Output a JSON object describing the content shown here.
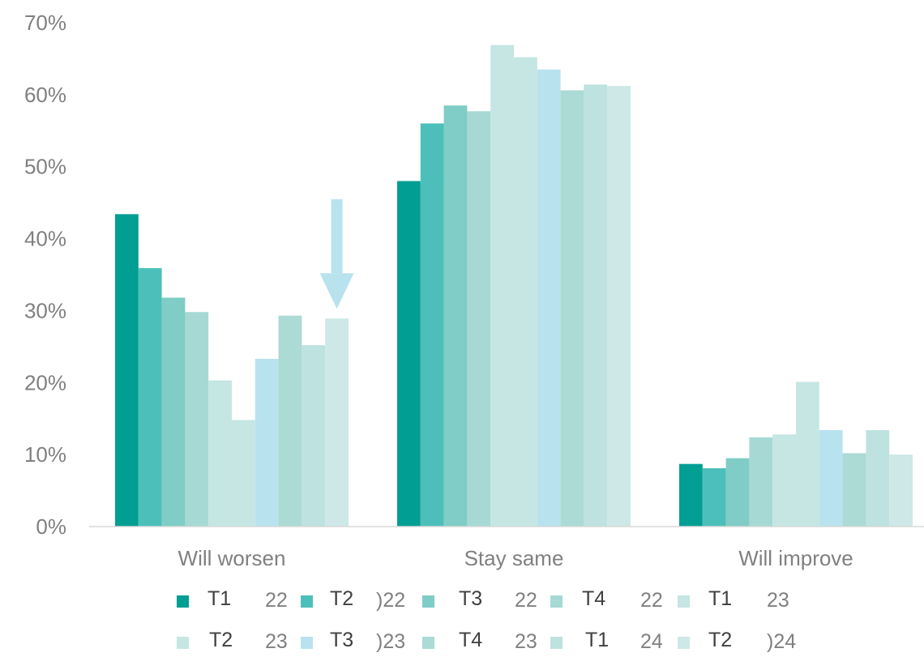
{
  "chart_data": {
    "type": "bar",
    "categories": [
      "Will worsen",
      "Stay same",
      "Will improve"
    ],
    "ylim": [
      0,
      70
    ],
    "yticks": [
      "0%",
      "10%",
      "20%",
      "30%",
      "40%",
      "50%",
      "60%",
      "70%"
    ],
    "grid": false,
    "legend_position": "bottom",
    "series": [
      {
        "name": "T1 22",
        "color": "#009e93",
        "values": [
          43.4,
          48.0,
          8.7
        ]
      },
      {
        "name": "T2 22",
        "color": "#4dbfba",
        "values": [
          35.9,
          56.0,
          8.1
        ]
      },
      {
        "name": "T3 22",
        "color": "#80ccc6",
        "values": [
          31.8,
          58.5,
          9.5
        ]
      },
      {
        "name": "T4 22",
        "color": "#a6d9d4",
        "values": [
          29.8,
          57.7,
          12.4
        ]
      },
      {
        "name": "T1 23",
        "color": "#c5e6e3",
        "values": [
          20.3,
          66.9,
          12.8
        ]
      },
      {
        "name": "T2 23",
        "color": "#c5e6e3",
        "values": [
          14.8,
          65.2,
          20.1
        ]
      },
      {
        "name": "T3 23",
        "color": "#b8e2ee",
        "values": [
          23.3,
          63.5,
          13.4
        ]
      },
      {
        "name": "T4 23",
        "color": "#acdad5",
        "values": [
          29.3,
          60.6,
          10.2
        ]
      },
      {
        "name": "T1 24",
        "color": "#bde2df",
        "values": [
          25.2,
          61.4,
          13.4
        ]
      },
      {
        "name": "T2 24",
        "color": "#cde8e6",
        "values": [
          28.9,
          61.2,
          10.0
        ]
      }
    ],
    "annotation": {
      "type": "arrow",
      "direction": "down",
      "color": "#b8e2ee",
      "series": "T2 24",
      "category": "Will worsen"
    }
  },
  "legend": {
    "row1": [
      {
        "label": "T1",
        "year": "22"
      },
      {
        "label": "T2",
        "year": ")22"
      },
      {
        "label": "T3",
        "year": "22"
      },
      {
        "label": "T4",
        "year": "22"
      },
      {
        "label": "T1",
        "year": "23"
      }
    ],
    "row2": [
      {
        "label": "T2",
        "year": "23"
      },
      {
        "label": "T3",
        "year": ")23"
      },
      {
        "label": "T4",
        "year": "23"
      },
      {
        "label": "T1",
        "year": "24"
      },
      {
        "label": "T2",
        "year": ")24"
      }
    ]
  }
}
